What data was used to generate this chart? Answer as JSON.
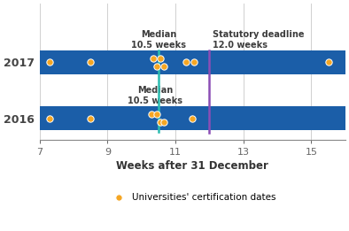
{
  "title": "",
  "xlabel": "Weeks after 31 December",
  "ylabel": "",
  "xlim": [
    7,
    16
  ],
  "xticks": [
    7,
    9,
    11,
    13,
    15
  ],
  "ytick_labels": [
    "2016",
    "2017"
  ],
  "bar_color": "#1B5EA8",
  "bar_height": 0.42,
  "dot_color": "#F5A623",
  "dot_edge_color": "#ffffff",
  "dot_size": 28,
  "dot_edge_width": 0.7,
  "median_line_color": "#2BBCB0",
  "statutory_line_color": "#8B4DB5",
  "median_value": 10.5,
  "statutory_value": 12.0,
  "median_label_top": "Median\n10.5 weeks",
  "statutory_label_top": "Statutory deadline\n12.0 weeks",
  "median_label_mid": "Median\n10.5 weeks",
  "legend_label": "Universities' certification dates",
  "data_2017_x": [
    7.3,
    8.5,
    10.35,
    10.45,
    10.55,
    10.65,
    11.3,
    11.55,
    15.5
  ],
  "data_2017_y": [
    0.0,
    0.0,
    0.07,
    -0.07,
    0.07,
    -0.07,
    0.0,
    0.0,
    0.0
  ],
  "data_2016_x": [
    7.3,
    8.5,
    10.3,
    10.45,
    10.55,
    10.65,
    11.5
  ],
  "data_2016_y": [
    0.0,
    0.0,
    0.07,
    0.07,
    -0.07,
    -0.07,
    0.0
  ],
  "background_color": "#ffffff",
  "grid_color": "#d0d0d0",
  "text_color": "#3C3C3C",
  "label_color_median": "#3C3C3C",
  "label_color_statutory": "#3C3C3C"
}
